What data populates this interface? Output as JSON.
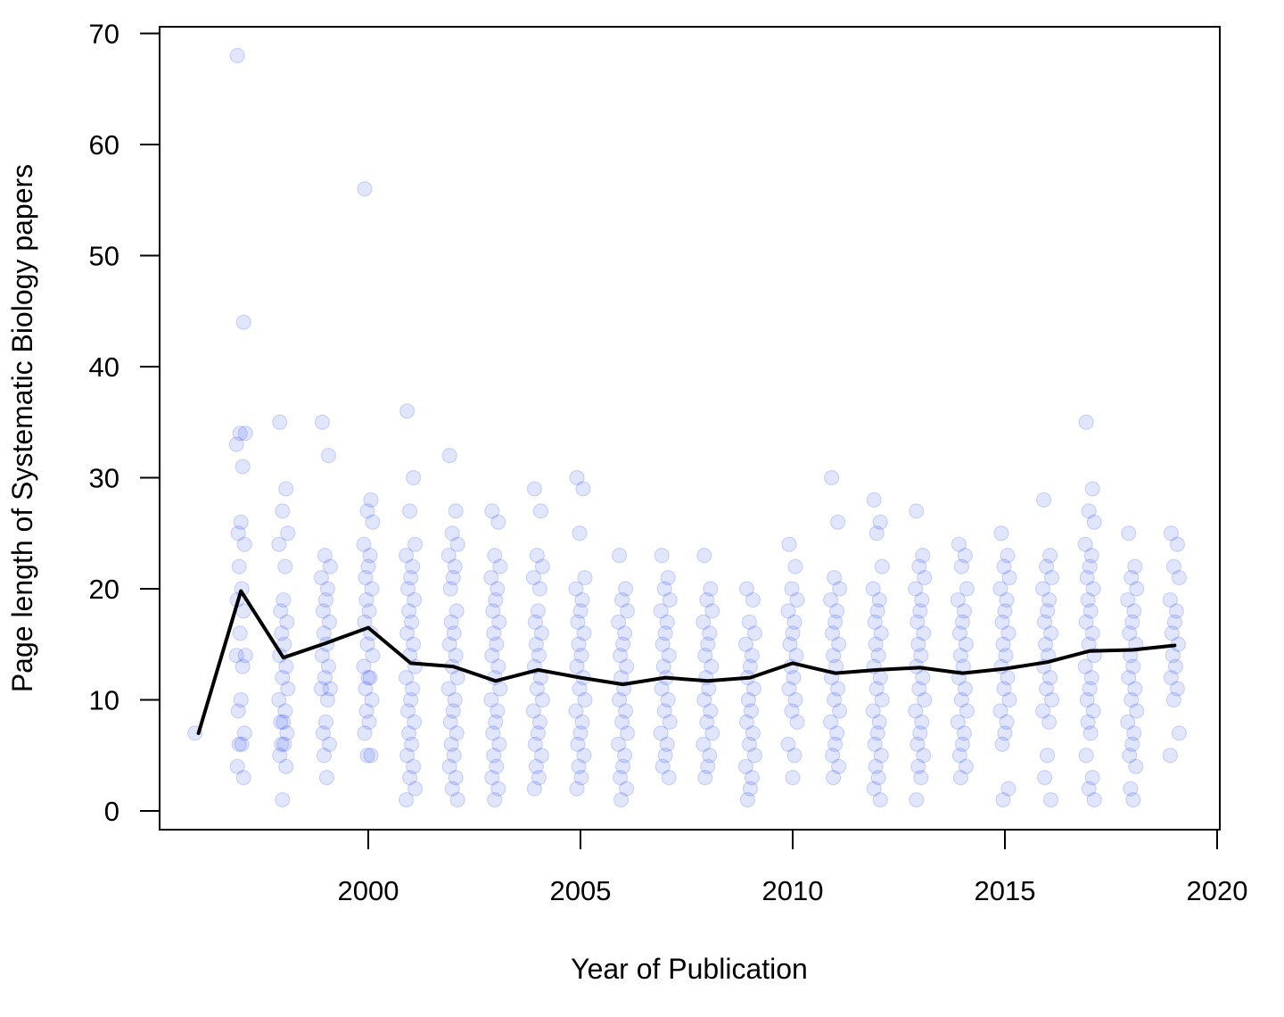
{
  "chart_data": {
    "type": "scatter",
    "title": "",
    "xlabel": "Year of Publication",
    "ylabel": "Page length of Systematic Biology papers",
    "xlim": [
      1996,
      2019
    ],
    "ylim": [
      0,
      70
    ],
    "x_ticks": [
      2000,
      2005,
      2010,
      2015,
      2020
    ],
    "x_tick_labels": [
      "2000",
      "2005",
      "2010",
      "2015",
      "2020"
    ],
    "y_ticks": [
      0,
      10,
      20,
      30,
      40,
      50,
      60,
      70
    ],
    "y_tick_labels": [
      "0",
      "10",
      "20",
      "30",
      "40",
      "50",
      "60",
      "70"
    ],
    "grid": false,
    "legend": "none",
    "colors": {
      "points": "#1a3cf0",
      "mean_line": "#000000"
    },
    "series": [
      {
        "type": "scatter",
        "points_by_year": [
          {
            "year": 1996,
            "values": [
              7
            ]
          },
          {
            "year": 1997,
            "values": [
              68,
              44,
              34,
              34,
              33,
              31,
              26,
              25,
              24,
              22,
              20,
              19,
              18,
              16,
              14,
              14,
              13,
              10,
              9,
              7,
              6,
              6,
              4,
              3
            ]
          },
          {
            "year": 1998,
            "values": [
              35,
              29,
              27,
              25,
              24,
              22,
              19,
              18,
              17,
              16,
              15,
              14,
              13,
              12,
              11,
              10,
              9,
              8,
              8,
              7,
              6,
              6,
              5,
              4,
              1
            ]
          },
          {
            "year": 1999,
            "values": [
              35,
              32,
              23,
              22,
              21,
              20,
              19,
              18,
              17,
              16,
              15,
              14,
              13,
              12,
              11,
              11,
              10,
              8,
              7,
              6,
              5,
              3
            ]
          },
          {
            "year": 2000,
            "values": [
              56,
              28,
              27,
              26,
              24,
              23,
              22,
              21,
              20,
              19,
              18,
              17,
              16,
              15,
              14,
              13,
              12,
              12,
              11,
              10,
              9,
              8,
              7,
              5,
              5
            ]
          },
          {
            "year": 2001,
            "values": [
              36,
              30,
              27,
              24,
              23,
              22,
              21,
              20,
              19,
              18,
              17,
              16,
              15,
              14,
              13,
              12,
              11,
              10,
              9,
              8,
              7,
              6,
              5,
              4,
              3,
              2,
              1
            ]
          },
          {
            "year": 2002,
            "values": [
              32,
              27,
              25,
              24,
              23,
              22,
              21,
              20,
              18,
              17,
              16,
              15,
              14,
              13,
              12,
              11,
              10,
              9,
              8,
              7,
              6,
              5,
              4,
              3,
              2,
              1
            ]
          },
          {
            "year": 2003,
            "values": [
              27,
              26,
              23,
              22,
              21,
              20,
              19,
              18,
              17,
              16,
              15,
              14,
              13,
              12,
              11,
              10,
              9,
              8,
              7,
              6,
              5,
              4,
              3,
              2,
              1
            ]
          },
          {
            "year": 2004,
            "values": [
              29,
              27,
              23,
              22,
              21,
              20,
              18,
              17,
              16,
              15,
              14,
              13,
              12,
              11,
              10,
              9,
              8,
              7,
              6,
              5,
              4,
              3,
              2
            ]
          },
          {
            "year": 2005,
            "values": [
              30,
              29,
              25,
              21,
              20,
              19,
              18,
              17,
              16,
              15,
              14,
              13,
              12,
              11,
              10,
              9,
              8,
              7,
              6,
              5,
              4,
              3,
              2
            ]
          },
          {
            "year": 2006,
            "values": [
              23,
              20,
              19,
              18,
              17,
              16,
              15,
              14,
              13,
              12,
              11,
              10,
              9,
              8,
              7,
              6,
              5,
              4,
              3,
              2,
              1
            ]
          },
          {
            "year": 2007,
            "values": [
              23,
              21,
              20,
              19,
              18,
              17,
              16,
              15,
              14,
              13,
              12,
              11,
              10,
              9,
              8,
              7,
              6,
              5,
              4,
              3
            ]
          },
          {
            "year": 2008,
            "values": [
              23,
              20,
              19,
              18,
              17,
              16,
              15,
              14,
              13,
              12,
              11,
              10,
              9,
              8,
              7,
              6,
              5,
              4,
              3
            ]
          },
          {
            "year": 2009,
            "values": [
              20,
              19,
              17,
              16,
              15,
              14,
              13,
              12,
              11,
              10,
              9,
              8,
              7,
              6,
              5,
              4,
              3,
              2,
              1
            ]
          },
          {
            "year": 2010,
            "values": [
              24,
              22,
              20,
              19,
              18,
              17,
              16,
              15,
              14,
              13,
              12,
              11,
              10,
              9,
              8,
              6,
              5,
              3
            ]
          },
          {
            "year": 2011,
            "values": [
              30,
              26,
              21,
              20,
              19,
              18,
              17,
              16,
              15,
              14,
              13,
              12,
              11,
              10,
              9,
              8,
              7,
              6,
              5,
              4,
              3
            ]
          },
          {
            "year": 2012,
            "values": [
              28,
              26,
              25,
              22,
              20,
              19,
              18,
              17,
              16,
              15,
              14,
              13,
              12,
              11,
              10,
              9,
              8,
              7,
              6,
              5,
              4,
              3,
              2,
              1
            ]
          },
          {
            "year": 2013,
            "values": [
              27,
              23,
              22,
              21,
              20,
              19,
              18,
              17,
              16,
              15,
              14,
              13,
              12,
              11,
              10,
              9,
              8,
              7,
              6,
              5,
              4,
              3,
              1
            ]
          },
          {
            "year": 2014,
            "values": [
              24,
              23,
              22,
              20,
              19,
              18,
              17,
              16,
              15,
              14,
              13,
              12,
              11,
              10,
              9,
              8,
              7,
              6,
              5,
              4,
              3
            ]
          },
          {
            "year": 2015,
            "values": [
              25,
              23,
              22,
              21,
              20,
              19,
              18,
              17,
              16,
              15,
              14,
              13,
              12,
              11,
              10,
              9,
              8,
              7,
              6,
              2,
              1
            ]
          },
          {
            "year": 2016,
            "values": [
              28,
              23,
              22,
              21,
              20,
              19,
              18,
              17,
              16,
              15,
              14,
              13,
              12,
              11,
              10,
              9,
              8,
              5,
              3,
              1
            ]
          },
          {
            "year": 2017,
            "values": [
              35,
              29,
              27,
              26,
              24,
              23,
              22,
              21,
              20,
              19,
              18,
              17,
              16,
              15,
              14,
              13,
              12,
              11,
              10,
              9,
              8,
              7,
              5,
              3,
              2,
              1
            ]
          },
          {
            "year": 2018,
            "values": [
              25,
              22,
              21,
              20,
              19,
              18,
              17,
              16,
              15,
              14,
              13,
              12,
              11,
              10,
              9,
              8,
              7,
              6,
              5,
              4,
              2,
              1
            ]
          },
          {
            "year": 2019,
            "values": [
              25,
              24,
              22,
              21,
              19,
              18,
              17,
              16,
              15,
              14,
              13,
              12,
              11,
              10,
              7,
              5
            ]
          }
        ]
      },
      {
        "type": "line",
        "x": [
          1996,
          1997,
          1998,
          1999,
          2000,
          2001,
          2002,
          2003,
          2004,
          2005,
          2006,
          2007,
          2008,
          2009,
          2010,
          2011,
          2012,
          2013,
          2014,
          2015,
          2016,
          2017,
          2018,
          2019
        ],
        "y": [
          7,
          19.8,
          13.8,
          15.1,
          16.5,
          13.3,
          13.0,
          11.7,
          12.7,
          12.0,
          11.4,
          12.0,
          11.7,
          12.0,
          13.3,
          12.4,
          12.7,
          12.9,
          12.4,
          12.8,
          13.4,
          14.4,
          14.5,
          14.9
        ]
      }
    ]
  }
}
